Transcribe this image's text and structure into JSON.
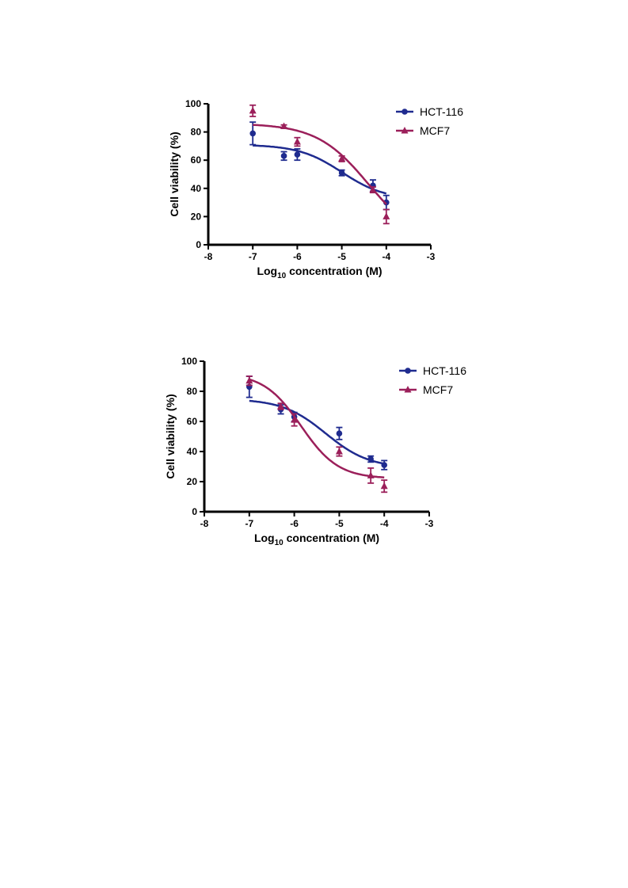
{
  "colors": {
    "hct": "#1f2b8f",
    "mcf": "#9b1f5a"
  },
  "chart_data": [
    {
      "type": "scatter",
      "xlabel": {
        "base": "Log",
        "sub": "10",
        "rest": " concentration (M)"
      },
      "ylabel": "Cell viability (%)",
      "xlim": [
        -8,
        -3
      ],
      "ylim": [
        0,
        100
      ],
      "xticks": [
        "-8",
        "-7",
        "-6",
        "-5",
        "-4",
        "-3"
      ],
      "yticks": [
        "0",
        "20",
        "40",
        "60",
        "80",
        "100"
      ],
      "legend_position": "top-right",
      "series": [
        {
          "name": "HCT-116",
          "marker": "circle",
          "points": [
            {
              "x": -7,
              "y": 79,
              "err": 8
            },
            {
              "x": -6.3,
              "y": 63,
              "err": 3
            },
            {
              "x": -6,
              "y": 64,
              "err": 4
            },
            {
              "x": -5,
              "y": 51,
              "err": 2
            },
            {
              "x": -4.3,
              "y": 42,
              "err": 4
            },
            {
              "x": -4,
              "y": 30,
              "err": 5
            }
          ],
          "fit": {
            "top": 71,
            "bottom": 32,
            "logec50": -5.0,
            "hill": 0.9
          }
        },
        {
          "name": "MCF7",
          "marker": "triangle",
          "points": [
            {
              "x": -7,
              "y": 95,
              "err": 4
            },
            {
              "x": -6.3,
              "y": 84,
              "err": 1
            },
            {
              "x": -6,
              "y": 73,
              "err": 3
            },
            {
              "x": -5,
              "y": 61,
              "err": 2
            },
            {
              "x": -4.3,
              "y": 39,
              "err": 2
            },
            {
              "x": -4,
              "y": 20,
              "err": 5
            }
          ],
          "fit": {
            "top": 86,
            "bottom": 0,
            "logec50": -4.4,
            "hill": 0.75
          }
        }
      ]
    },
    {
      "type": "scatter",
      "xlabel": {
        "base": "Log",
        "sub": "10",
        "rest": " concentration (M)"
      },
      "ylabel": "Cell viability (%)",
      "xlim": [
        -8,
        -3
      ],
      "ylim": [
        0,
        100
      ],
      "xticks": [
        "-8",
        "-7",
        "-6",
        "-5",
        "-4",
        "-3"
      ],
      "yticks": [
        "0",
        "20",
        "40",
        "60",
        "80",
        "100"
      ],
      "legend_position": "top-right",
      "series": [
        {
          "name": "HCT-116",
          "marker": "circle",
          "points": [
            {
              "x": -7,
              "y": 83,
              "err": 7
            },
            {
              "x": -6.3,
              "y": 68,
              "err": 3
            },
            {
              "x": -6,
              "y": 63,
              "err": 3
            },
            {
              "x": -5,
              "y": 52,
              "err": 4
            },
            {
              "x": -4.3,
              "y": 35,
              "err": 2
            },
            {
              "x": -4,
              "y": 31,
              "err": 3
            }
          ],
          "fit": {
            "top": 75,
            "bottom": 29,
            "logec50": -5.3,
            "hill": 0.9
          }
        },
        {
          "name": "MCF7",
          "marker": "triangle",
          "points": [
            {
              "x": -7,
              "y": 87,
              "err": 3
            },
            {
              "x": -6.3,
              "y": 70,
              "err": 2
            },
            {
              "x": -6,
              "y": 61,
              "err": 4
            },
            {
              "x": -5,
              "y": 40,
              "err": 3
            },
            {
              "x": -4.3,
              "y": 24,
              "err": 5
            },
            {
              "x": -4,
              "y": 17,
              "err": 4
            }
          ],
          "fit": {
            "top": 92,
            "bottom": 22,
            "logec50": -5.85,
            "hill": 1.05
          }
        }
      ]
    }
  ]
}
